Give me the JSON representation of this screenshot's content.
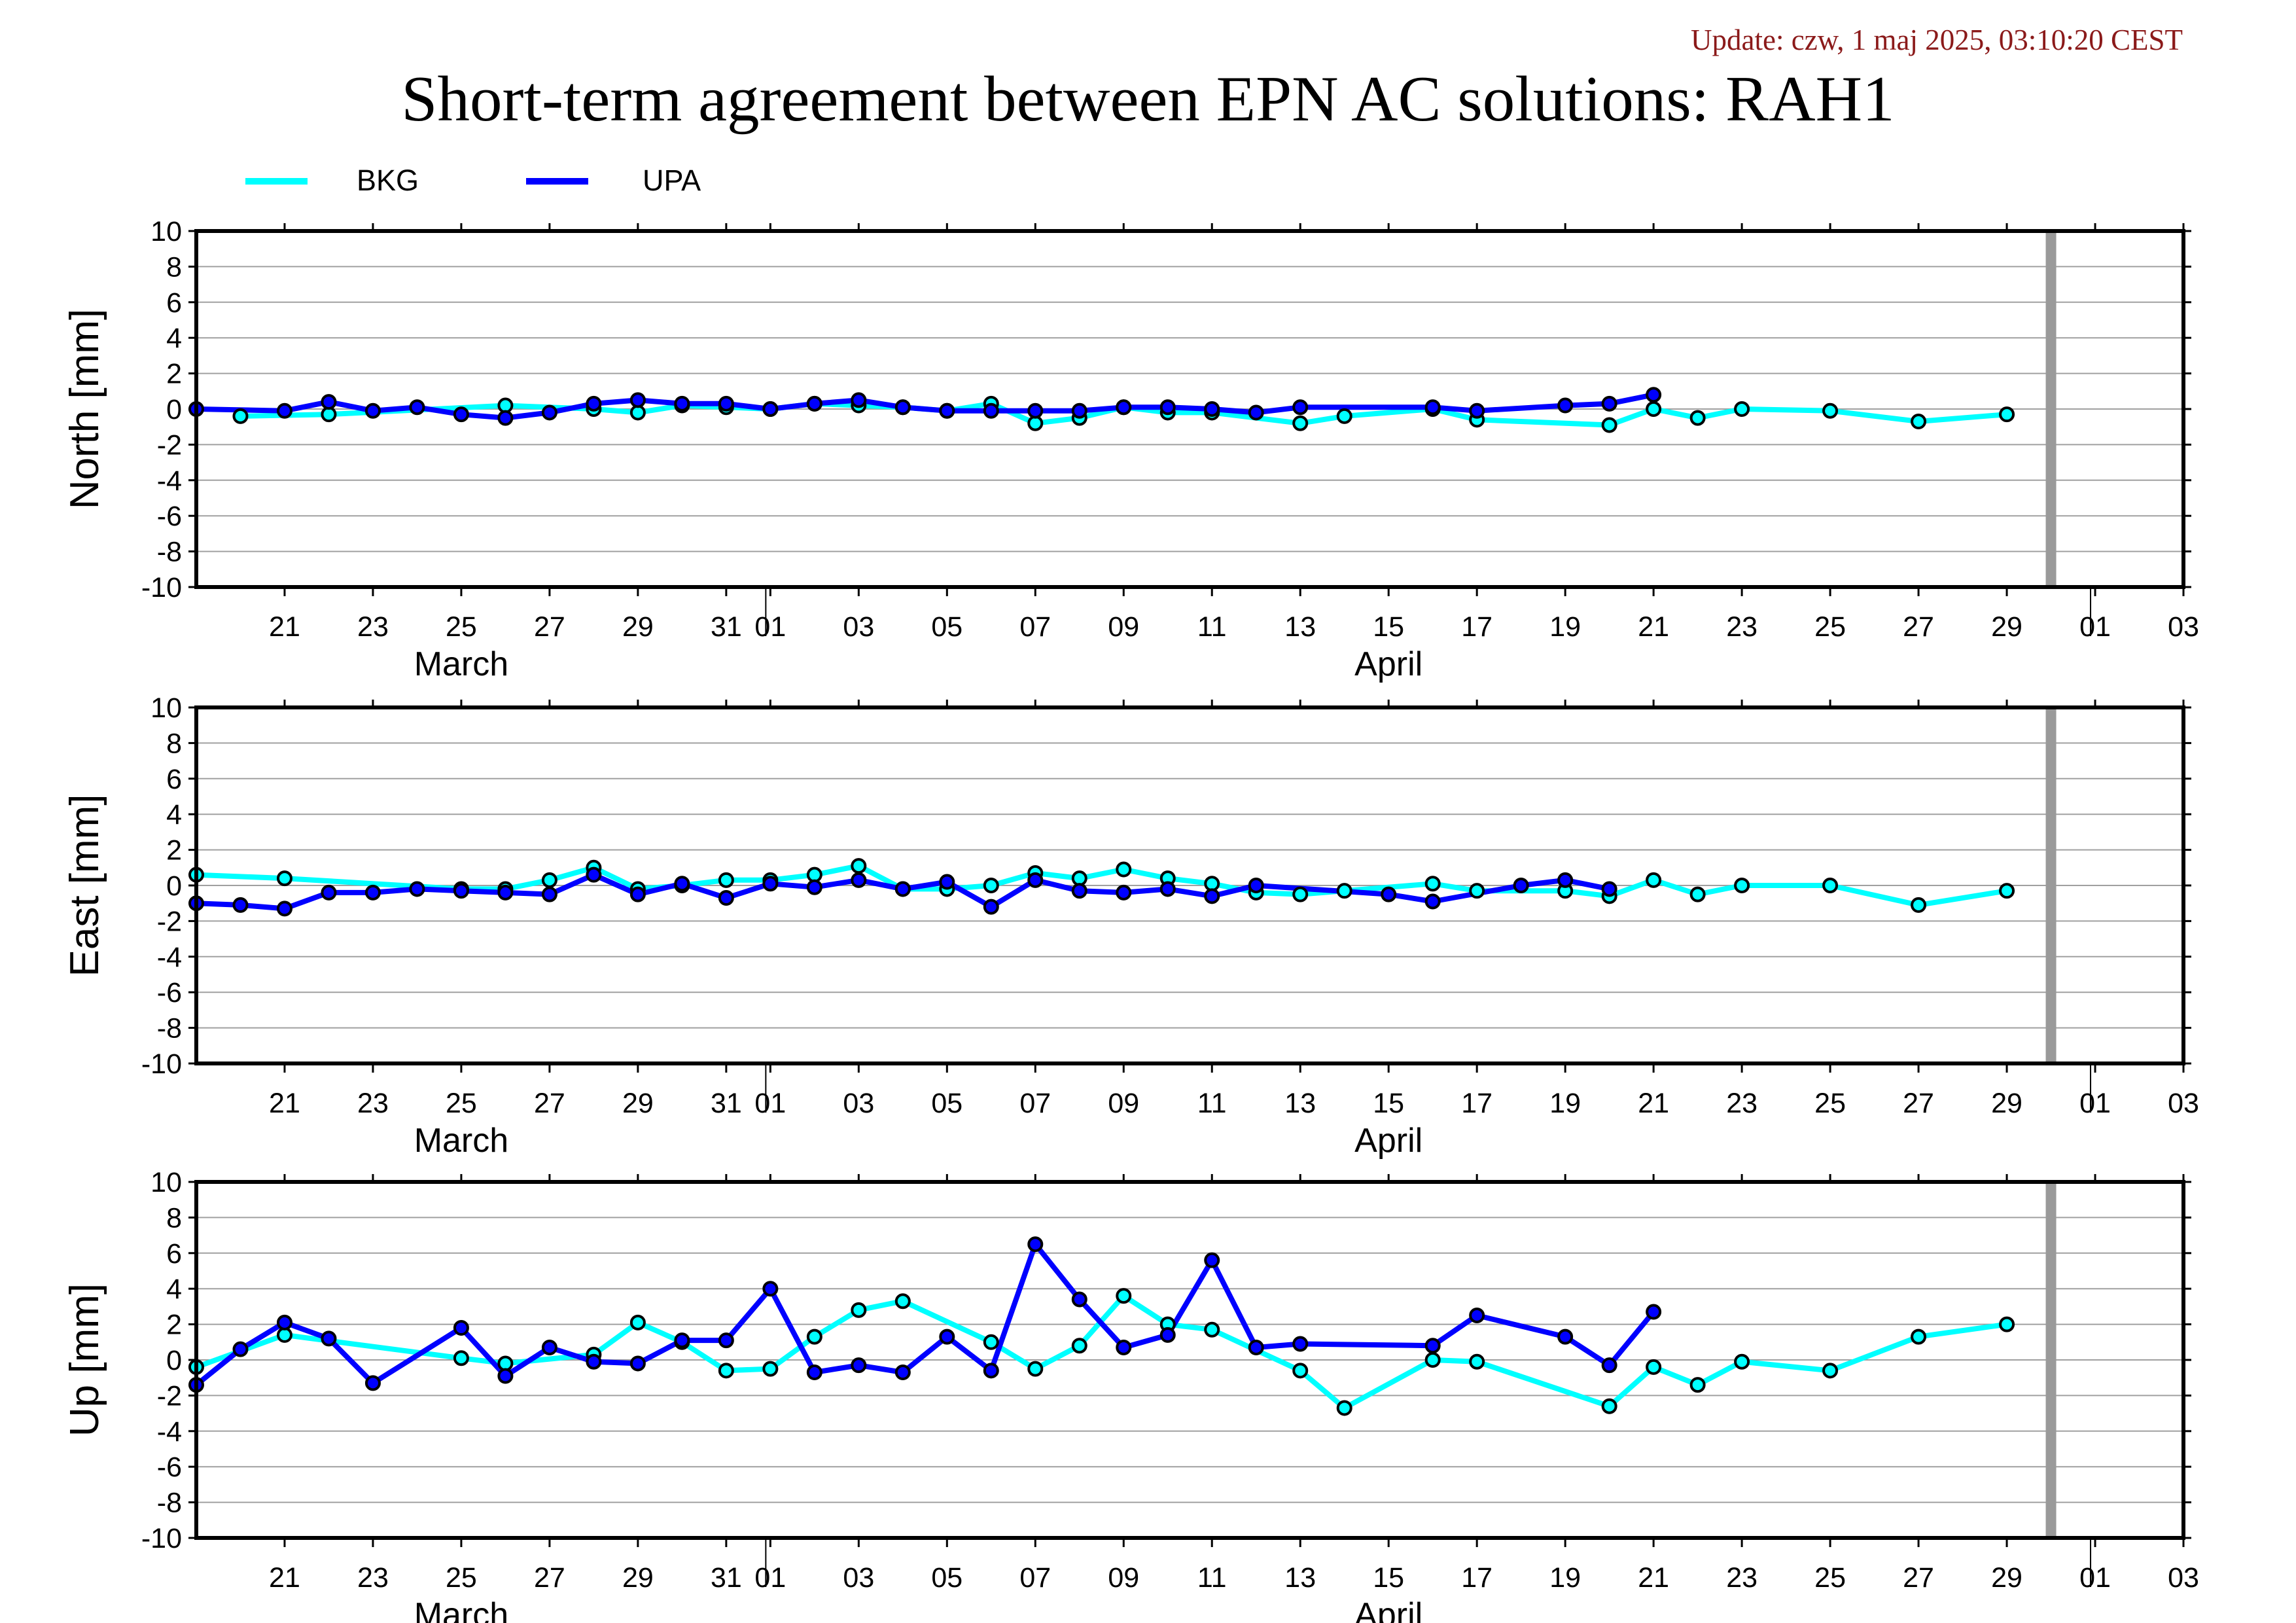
{
  "header": {
    "update": "Update: czw, 1 maj 2025, 03:10:20 CEST",
    "title": "Short-term agreement between EPN AC solutions: RAH1"
  },
  "legend": [
    {
      "name": "BKG",
      "color": "#00ffff"
    },
    {
      "name": "UPA",
      "color": "#0000ff"
    }
  ],
  "chart_data": [
    {
      "type": "line",
      "ylabel": "North [mm]",
      "ylim": [
        -10,
        10
      ],
      "yticks": [
        -10,
        -8,
        -6,
        -4,
        -2,
        0,
        2,
        4,
        6,
        8,
        10
      ],
      "xlim": [
        "2025-03-19",
        "2025-05-03"
      ],
      "xtick_labels": [
        "21",
        "23",
        "25",
        "27",
        "29",
        "31",
        "01",
        "03",
        "05",
        "07",
        "09",
        "11",
        "13",
        "15",
        "17",
        "19",
        "21",
        "23",
        "25",
        "27",
        "29",
        "01",
        "03"
      ],
      "xtick_dates": [
        "2025-03-21",
        "2025-03-23",
        "2025-03-25",
        "2025-03-27",
        "2025-03-29",
        "2025-03-31",
        "2025-04-01",
        "2025-04-03",
        "2025-04-05",
        "2025-04-07",
        "2025-04-09",
        "2025-04-11",
        "2025-04-13",
        "2025-04-15",
        "2025-04-17",
        "2025-04-19",
        "2025-04-21",
        "2025-04-23",
        "2025-04-25",
        "2025-04-27",
        "2025-04-29",
        "2025-05-01",
        "2025-05-03"
      ],
      "month_labels": [
        {
          "label": "March",
          "date": "2025-03-25"
        },
        {
          "label": "April",
          "date": "2025-04-15"
        }
      ],
      "month_boundaries": [
        "2025-04-01",
        "2025-05-01"
      ],
      "marker_line": "2025-04-30",
      "grid": true,
      "series": [
        {
          "name": "BKG",
          "color": "#00ffff",
          "points": [
            [
              "2025-03-20",
              -0.4
            ],
            [
              "2025-03-22",
              -0.3
            ],
            [
              "2025-03-26",
              0.2
            ],
            [
              "2025-03-28",
              0.0
            ],
            [
              "2025-03-29",
              -0.2
            ],
            [
              "2025-03-30",
              0.2
            ],
            [
              "2025-03-31",
              0.1
            ],
            [
              "2025-04-01",
              0.0
            ],
            [
              "2025-04-02",
              0.3
            ],
            [
              "2025-04-03",
              0.2
            ],
            [
              "2025-04-04",
              0.1
            ],
            [
              "2025-04-05",
              -0.1
            ],
            [
              "2025-04-06",
              0.3
            ],
            [
              "2025-04-07",
              -0.8
            ],
            [
              "2025-04-08",
              -0.5
            ],
            [
              "2025-04-09",
              0.1
            ],
            [
              "2025-04-10",
              -0.2
            ],
            [
              "2025-04-11",
              -0.2
            ],
            [
              "2025-04-13",
              -0.8
            ],
            [
              "2025-04-14",
              -0.4
            ],
            [
              "2025-04-16",
              0.0
            ],
            [
              "2025-04-17",
              -0.6
            ],
            [
              "2025-04-20",
              -0.9
            ],
            [
              "2025-04-21",
              0.0
            ],
            [
              "2025-04-22",
              -0.5
            ],
            [
              "2025-04-23",
              0.0
            ],
            [
              "2025-04-25",
              -0.1
            ],
            [
              "2025-04-27",
              -0.7
            ],
            [
              "2025-04-29",
              -0.3
            ]
          ]
        },
        {
          "name": "UPA",
          "color": "#0000ff",
          "points": [
            [
              "2025-03-19",
              0.0
            ],
            [
              "2025-03-21",
              -0.1
            ],
            [
              "2025-03-22",
              0.4
            ],
            [
              "2025-03-23",
              -0.1
            ],
            [
              "2025-03-24",
              0.1
            ],
            [
              "2025-03-25",
              -0.3
            ],
            [
              "2025-03-26",
              -0.5
            ],
            [
              "2025-03-27",
              -0.2
            ],
            [
              "2025-03-28",
              0.3
            ],
            [
              "2025-03-29",
              0.5
            ],
            [
              "2025-03-30",
              0.3
            ],
            [
              "2025-03-31",
              0.3
            ],
            [
              "2025-04-01",
              0.0
            ],
            [
              "2025-04-02",
              0.3
            ],
            [
              "2025-04-03",
              0.5
            ],
            [
              "2025-04-04",
              0.1
            ],
            [
              "2025-04-05",
              -0.1
            ],
            [
              "2025-04-06",
              -0.1
            ],
            [
              "2025-04-07",
              -0.1
            ],
            [
              "2025-04-08",
              -0.1
            ],
            [
              "2025-04-09",
              0.1
            ],
            [
              "2025-04-10",
              0.1
            ],
            [
              "2025-04-11",
              0.0
            ],
            [
              "2025-04-12",
              -0.2
            ],
            [
              "2025-04-13",
              0.1
            ],
            [
              "2025-04-16",
              0.1
            ],
            [
              "2025-04-17",
              -0.1
            ],
            [
              "2025-04-19",
              0.2
            ],
            [
              "2025-04-20",
              0.3
            ],
            [
              "2025-04-21",
              0.8
            ]
          ]
        }
      ]
    },
    {
      "type": "line",
      "ylabel": "East [mm]",
      "ylim": [
        -10,
        10
      ],
      "yticks": [
        -10,
        -8,
        -6,
        -4,
        -2,
        0,
        2,
        4,
        6,
        8,
        10
      ],
      "xlim": [
        "2025-03-19",
        "2025-05-03"
      ],
      "xtick_labels": [
        "21",
        "23",
        "25",
        "27",
        "29",
        "31",
        "01",
        "03",
        "05",
        "07",
        "09",
        "11",
        "13",
        "15",
        "17",
        "19",
        "21",
        "23",
        "25",
        "27",
        "29",
        "01",
        "03"
      ],
      "xtick_dates": [
        "2025-03-21",
        "2025-03-23",
        "2025-03-25",
        "2025-03-27",
        "2025-03-29",
        "2025-03-31",
        "2025-04-01",
        "2025-04-03",
        "2025-04-05",
        "2025-04-07",
        "2025-04-09",
        "2025-04-11",
        "2025-04-13",
        "2025-04-15",
        "2025-04-17",
        "2025-04-19",
        "2025-04-21",
        "2025-04-23",
        "2025-04-25",
        "2025-04-27",
        "2025-04-29",
        "2025-05-01",
        "2025-05-03"
      ],
      "month_labels": [
        {
          "label": "March",
          "date": "2025-03-25"
        },
        {
          "label": "April",
          "date": "2025-04-15"
        }
      ],
      "month_boundaries": [
        "2025-04-01",
        "2025-05-01"
      ],
      "marker_line": "2025-04-30",
      "grid": true,
      "series": [
        {
          "name": "BKG",
          "color": "#00ffff",
          "points": [
            [
              "2025-03-19",
              0.6
            ],
            [
              "2025-03-21",
              0.4
            ],
            [
              "2025-03-25",
              -0.2
            ],
            [
              "2025-03-26",
              -0.2
            ],
            [
              "2025-03-27",
              0.3
            ],
            [
              "2025-03-28",
              1.0
            ],
            [
              "2025-03-29",
              -0.2
            ],
            [
              "2025-03-30",
              0.0
            ],
            [
              "2025-03-31",
              0.3
            ],
            [
              "2025-04-01",
              0.3
            ],
            [
              "2025-04-02",
              0.6
            ],
            [
              "2025-04-03",
              1.1
            ],
            [
              "2025-04-04",
              -0.2
            ],
            [
              "2025-04-05",
              -0.2
            ],
            [
              "2025-04-06",
              0.0
            ],
            [
              "2025-04-07",
              0.7
            ],
            [
              "2025-04-08",
              0.4
            ],
            [
              "2025-04-09",
              0.9
            ],
            [
              "2025-04-10",
              0.4
            ],
            [
              "2025-04-11",
              0.1
            ],
            [
              "2025-04-12",
              -0.4
            ],
            [
              "2025-04-13",
              -0.5
            ],
            [
              "2025-04-14",
              -0.3
            ],
            [
              "2025-04-16",
              0.1
            ],
            [
              "2025-04-17",
              -0.3
            ],
            [
              "2025-04-19",
              -0.3
            ],
            [
              "2025-04-20",
              -0.6
            ],
            [
              "2025-04-21",
              0.3
            ],
            [
              "2025-04-22",
              -0.5
            ],
            [
              "2025-04-23",
              0.0
            ],
            [
              "2025-04-25",
              0.0
            ],
            [
              "2025-04-27",
              -1.1
            ],
            [
              "2025-04-29",
              -0.3
            ]
          ]
        },
        {
          "name": "UPA",
          "color": "#0000ff",
          "points": [
            [
              "2025-03-19",
              -1.0
            ],
            [
              "2025-03-20",
              -1.1
            ],
            [
              "2025-03-21",
              -1.3
            ],
            [
              "2025-03-22",
              -0.4
            ],
            [
              "2025-03-23",
              -0.4
            ],
            [
              "2025-03-24",
              -0.2
            ],
            [
              "2025-03-25",
              -0.3
            ],
            [
              "2025-03-26",
              -0.4
            ],
            [
              "2025-03-27",
              -0.5
            ],
            [
              "2025-03-28",
              0.6
            ],
            [
              "2025-03-29",
              -0.5
            ],
            [
              "2025-03-30",
              0.1
            ],
            [
              "2025-03-31",
              -0.7
            ],
            [
              "2025-04-01",
              0.1
            ],
            [
              "2025-04-02",
              -0.1
            ],
            [
              "2025-04-03",
              0.3
            ],
            [
              "2025-04-04",
              -0.2
            ],
            [
              "2025-04-05",
              0.2
            ],
            [
              "2025-04-06",
              -1.2
            ],
            [
              "2025-04-07",
              0.3
            ],
            [
              "2025-04-08",
              -0.3
            ],
            [
              "2025-04-09",
              -0.4
            ],
            [
              "2025-04-10",
              -0.2
            ],
            [
              "2025-04-11",
              -0.6
            ],
            [
              "2025-04-12",
              0.0
            ],
            [
              "2025-04-15",
              -0.5
            ],
            [
              "2025-04-16",
              -0.9
            ],
            [
              "2025-04-18",
              0.0
            ],
            [
              "2025-04-19",
              0.3
            ],
            [
              "2025-04-20",
              -0.2
            ]
          ]
        }
      ]
    },
    {
      "type": "line",
      "ylabel": "Up [mm]",
      "ylim": [
        -10,
        10
      ],
      "yticks": [
        -10,
        -8,
        -6,
        -4,
        -2,
        0,
        2,
        4,
        6,
        8,
        10
      ],
      "xlim": [
        "2025-03-19",
        "2025-05-03"
      ],
      "xtick_labels": [
        "21",
        "23",
        "25",
        "27",
        "29",
        "31",
        "01",
        "03",
        "05",
        "07",
        "09",
        "11",
        "13",
        "15",
        "17",
        "19",
        "21",
        "23",
        "25",
        "27",
        "29",
        "01",
        "03"
      ],
      "xtick_dates": [
        "2025-03-21",
        "2025-03-23",
        "2025-03-25",
        "2025-03-27",
        "2025-03-29",
        "2025-03-31",
        "2025-04-01",
        "2025-04-03",
        "2025-04-05",
        "2025-04-07",
        "2025-04-09",
        "2025-04-11",
        "2025-04-13",
        "2025-04-15",
        "2025-04-17",
        "2025-04-19",
        "2025-04-21",
        "2025-04-23",
        "2025-04-25",
        "2025-04-27",
        "2025-04-29",
        "2025-05-01",
        "2025-05-03"
      ],
      "month_labels": [
        {
          "label": "March",
          "date": "2025-03-25"
        },
        {
          "label": "April",
          "date": "2025-04-15"
        }
      ],
      "month_boundaries": [
        "2025-04-01",
        "2025-05-01"
      ],
      "marker_line": "2025-04-30",
      "grid": true,
      "series": [
        {
          "name": "BKG",
          "color": "#00ffff",
          "points": [
            [
              "2025-03-19",
              -0.4
            ],
            [
              "2025-03-21",
              1.4
            ],
            [
              "2025-03-25",
              0.1
            ],
            [
              "2025-03-26",
              -0.2
            ],
            [
              "2025-03-28",
              0.3
            ],
            [
              "2025-03-29",
              2.1
            ],
            [
              "2025-03-30",
              1.0
            ],
            [
              "2025-03-31",
              -0.6
            ],
            [
              "2025-04-01",
              -0.5
            ],
            [
              "2025-04-02",
              1.3
            ],
            [
              "2025-04-03",
              2.8
            ],
            [
              "2025-04-04",
              3.3
            ],
            [
              "2025-04-06",
              1.0
            ],
            [
              "2025-04-07",
              -0.5
            ],
            [
              "2025-04-08",
              0.8
            ],
            [
              "2025-04-09",
              3.6
            ],
            [
              "2025-04-10",
              2.0
            ],
            [
              "2025-04-11",
              1.7
            ],
            [
              "2025-04-13",
              -0.6
            ],
            [
              "2025-04-14",
              -2.7
            ],
            [
              "2025-04-16",
              0.0
            ],
            [
              "2025-04-17",
              -0.1
            ],
            [
              "2025-04-20",
              -2.6
            ],
            [
              "2025-04-21",
              -0.4
            ],
            [
              "2025-04-22",
              -1.4
            ],
            [
              "2025-04-23",
              -0.1
            ],
            [
              "2025-04-25",
              -0.6
            ],
            [
              "2025-04-27",
              1.3
            ],
            [
              "2025-04-29",
              2.0
            ]
          ]
        },
        {
          "name": "UPA",
          "color": "#0000ff",
          "points": [
            [
              "2025-03-19",
              -1.4
            ],
            [
              "2025-03-20",
              0.6
            ],
            [
              "2025-03-21",
              2.1
            ],
            [
              "2025-03-22",
              1.2
            ],
            [
              "2025-03-23",
              -1.3
            ],
            [
              "2025-03-25",
              1.8
            ],
            [
              "2025-03-26",
              -0.9
            ],
            [
              "2025-03-27",
              0.7
            ],
            [
              "2025-03-28",
              -0.1
            ],
            [
              "2025-03-29",
              -0.2
            ],
            [
              "2025-03-30",
              1.1
            ],
            [
              "2025-03-31",
              1.1
            ],
            [
              "2025-04-01",
              4.0
            ],
            [
              "2025-04-02",
              -0.7
            ],
            [
              "2025-04-03",
              -0.3
            ],
            [
              "2025-04-04",
              -0.7
            ],
            [
              "2025-04-05",
              1.3
            ],
            [
              "2025-04-06",
              -0.6
            ],
            [
              "2025-04-07",
              6.5
            ],
            [
              "2025-04-08",
              3.4
            ],
            [
              "2025-04-09",
              0.7
            ],
            [
              "2025-04-10",
              1.4
            ],
            [
              "2025-04-11",
              5.6
            ],
            [
              "2025-04-12",
              0.7
            ],
            [
              "2025-04-13",
              0.9
            ],
            [
              "2025-04-16",
              0.8
            ],
            [
              "2025-04-17",
              2.5
            ],
            [
              "2025-04-19",
              1.3
            ],
            [
              "2025-04-20",
              -0.3
            ],
            [
              "2025-04-21",
              2.7
            ]
          ]
        }
      ]
    }
  ]
}
